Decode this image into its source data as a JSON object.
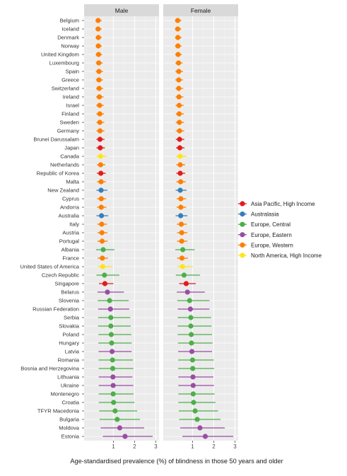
{
  "chart_data": {
    "type": "scatter",
    "subtype": "dot-and-whisker",
    "xlabel": "Age-standardised prevalence (%) of blindness in those 50 years and older",
    "xlim": [
      0,
      3
    ],
    "xticks": [
      1,
      2,
      3
    ],
    "grid": true,
    "legend_position": "right",
    "panels": [
      "Male",
      "Female"
    ],
    "regions": [
      {
        "name": "Asia Pacific, High Income",
        "color": "#e41a1c"
      },
      {
        "name": "Australasia",
        "color": "#377eb8"
      },
      {
        "name": "Europe, Central",
        "color": "#4daf4a"
      },
      {
        "name": "Europe, Eastern",
        "color": "#984ea3"
      },
      {
        "name": "Europe, Western",
        "color": "#ff7f00"
      },
      {
        "name": "North America, High Income",
        "color": "#ffe41a"
      }
    ],
    "countries": [
      {
        "name": "Belgium",
        "region": 4,
        "male": [
          0.28,
          0.15,
          0.45
        ],
        "female": [
          0.3,
          0.17,
          0.48
        ]
      },
      {
        "name": "Iceland",
        "region": 4,
        "male": [
          0.28,
          0.15,
          0.45
        ],
        "female": [
          0.3,
          0.17,
          0.48
        ]
      },
      {
        "name": "Denmark",
        "region": 4,
        "male": [
          0.29,
          0.16,
          0.46
        ],
        "female": [
          0.31,
          0.17,
          0.49
        ]
      },
      {
        "name": "Norway",
        "region": 4,
        "male": [
          0.29,
          0.16,
          0.46
        ],
        "female": [
          0.31,
          0.17,
          0.49
        ]
      },
      {
        "name": "United Kingdom",
        "region": 4,
        "male": [
          0.3,
          0.16,
          0.47
        ],
        "female": [
          0.32,
          0.18,
          0.5
        ]
      },
      {
        "name": "Luxembourg",
        "region": 4,
        "male": [
          0.31,
          0.17,
          0.5
        ],
        "female": [
          0.34,
          0.19,
          0.53
        ]
      },
      {
        "name": "Spain",
        "region": 4,
        "male": [
          0.32,
          0.17,
          0.51
        ],
        "female": [
          0.35,
          0.19,
          0.55
        ]
      },
      {
        "name": "Greece",
        "region": 4,
        "male": [
          0.32,
          0.17,
          0.51
        ],
        "female": [
          0.35,
          0.19,
          0.55
        ]
      },
      {
        "name": "Switzerland",
        "region": 4,
        "male": [
          0.33,
          0.18,
          0.52
        ],
        "female": [
          0.35,
          0.2,
          0.56
        ]
      },
      {
        "name": "Ireland",
        "region": 4,
        "male": [
          0.34,
          0.18,
          0.54
        ],
        "female": [
          0.36,
          0.2,
          0.57
        ]
      },
      {
        "name": "Israel",
        "region": 4,
        "male": [
          0.35,
          0.19,
          0.55
        ],
        "female": [
          0.37,
          0.2,
          0.58
        ]
      },
      {
        "name": "Finland",
        "region": 4,
        "male": [
          0.36,
          0.19,
          0.56
        ],
        "female": [
          0.37,
          0.21,
          0.59
        ]
      },
      {
        "name": "Sweden",
        "region": 4,
        "male": [
          0.36,
          0.2,
          0.57
        ],
        "female": [
          0.38,
          0.21,
          0.6
        ]
      },
      {
        "name": "Germany",
        "region": 4,
        "male": [
          0.37,
          0.2,
          0.58
        ],
        "female": [
          0.39,
          0.21,
          0.61
        ]
      },
      {
        "name": "Brunei Darussalam",
        "region": 0,
        "male": [
          0.37,
          0.2,
          0.58
        ],
        "female": [
          0.39,
          0.21,
          0.61
        ]
      },
      {
        "name": "Japan",
        "region": 0,
        "male": [
          0.38,
          0.2,
          0.6
        ],
        "female": [
          0.4,
          0.22,
          0.62
        ]
      },
      {
        "name": "Canada",
        "region": 5,
        "male": [
          0.4,
          0.2,
          0.7
        ],
        "female": [
          0.42,
          0.22,
          0.72
        ]
      },
      {
        "name": "Netherlands",
        "region": 4,
        "male": [
          0.4,
          0.22,
          0.62
        ],
        "female": [
          0.42,
          0.23,
          0.65
        ]
      },
      {
        "name": "Republic of Korea",
        "region": 0,
        "male": [
          0.41,
          0.22,
          0.64
        ],
        "female": [
          0.42,
          0.23,
          0.65
        ]
      },
      {
        "name": "Malta",
        "region": 4,
        "male": [
          0.42,
          0.23,
          0.65
        ],
        "female": [
          0.44,
          0.24,
          0.68
        ]
      },
      {
        "name": "New Zealand",
        "region": 1,
        "male": [
          0.42,
          0.2,
          0.72
        ],
        "female": [
          0.42,
          0.2,
          0.72
        ]
      },
      {
        "name": "Cyprus",
        "region": 4,
        "male": [
          0.43,
          0.23,
          0.66
        ],
        "female": [
          0.45,
          0.25,
          0.7
        ]
      },
      {
        "name": "Andorra",
        "region": 4,
        "male": [
          0.43,
          0.23,
          0.67
        ],
        "female": [
          0.45,
          0.25,
          0.7
        ]
      },
      {
        "name": "Australia",
        "region": 1,
        "male": [
          0.44,
          0.2,
          0.76
        ],
        "female": [
          0.44,
          0.2,
          0.76
        ]
      },
      {
        "name": "Italy",
        "region": 4,
        "male": [
          0.45,
          0.24,
          0.7
        ],
        "female": [
          0.47,
          0.26,
          0.73
        ]
      },
      {
        "name": "Austria",
        "region": 4,
        "male": [
          0.46,
          0.25,
          0.72
        ],
        "female": [
          0.49,
          0.27,
          0.76
        ]
      },
      {
        "name": "Portugal",
        "region": 4,
        "male": [
          0.47,
          0.25,
          0.73
        ],
        "female": [
          0.49,
          0.27,
          0.76
        ]
      },
      {
        "name": "Albania",
        "region": 2,
        "male": [
          0.52,
          0.18,
          1.05
        ],
        "female": [
          0.54,
          0.19,
          1.1
        ]
      },
      {
        "name": "France",
        "region": 4,
        "male": [
          0.48,
          0.26,
          0.75
        ],
        "female": [
          0.5,
          0.27,
          0.78
        ]
      },
      {
        "name": "United States of America",
        "region": 5,
        "male": [
          0.5,
          0.26,
          0.96
        ],
        "female": [
          0.53,
          0.28,
          1.02
        ]
      },
      {
        "name": "Czech Republic",
        "region": 2,
        "male": [
          0.58,
          0.2,
          1.28
        ],
        "female": [
          0.6,
          0.21,
          1.35
        ]
      },
      {
        "name": "Singapore",
        "region": 0,
        "male": [
          0.6,
          0.32,
          1.0
        ],
        "female": [
          0.7,
          0.37,
          1.15
        ]
      },
      {
        "name": "Belarus",
        "region": 3,
        "male": [
          0.72,
          0.25,
          1.5
        ],
        "female": [
          0.76,
          0.26,
          1.58
        ]
      },
      {
        "name": "Slovenia",
        "region": 2,
        "male": [
          0.82,
          0.26,
          1.72
        ],
        "female": [
          0.86,
          0.28,
          1.8
        ]
      },
      {
        "name": "Russian Federation",
        "region": 3,
        "male": [
          0.86,
          0.28,
          1.75
        ],
        "female": [
          0.9,
          0.3,
          1.8
        ]
      },
      {
        "name": "Serbia",
        "region": 2,
        "male": [
          0.88,
          0.28,
          1.8
        ],
        "female": [
          0.92,
          0.3,
          1.88
        ]
      },
      {
        "name": "Slovakia",
        "region": 2,
        "male": [
          0.88,
          0.28,
          1.82
        ],
        "female": [
          0.92,
          0.3,
          1.9
        ]
      },
      {
        "name": "Poland",
        "region": 2,
        "male": [
          0.9,
          0.29,
          1.85
        ],
        "female": [
          0.94,
          0.3,
          1.92
        ]
      },
      {
        "name": "Hungary",
        "region": 2,
        "male": [
          0.92,
          0.29,
          1.86
        ],
        "female": [
          0.95,
          0.31,
          1.94
        ]
      },
      {
        "name": "Latvia",
        "region": 3,
        "male": [
          0.94,
          0.3,
          1.86
        ],
        "female": [
          0.97,
          0.32,
          1.92
        ]
      },
      {
        "name": "Romania",
        "region": 2,
        "male": [
          0.96,
          0.3,
          1.92
        ],
        "female": [
          1.0,
          0.32,
          2.0
        ]
      },
      {
        "name": "Bosnia and Herzegovina",
        "region": 2,
        "male": [
          0.97,
          0.3,
          1.94
        ],
        "female": [
          1.01,
          0.32,
          2.02
        ]
      },
      {
        "name": "Lithuania",
        "region": 3,
        "male": [
          0.98,
          0.31,
          1.9
        ],
        "female": [
          1.02,
          0.33,
          1.98
        ]
      },
      {
        "name": "Ukraine",
        "region": 3,
        "male": [
          0.99,
          0.31,
          1.94
        ],
        "female": [
          1.03,
          0.33,
          2.01
        ]
      },
      {
        "name": "Montenegro",
        "region": 2,
        "male": [
          0.99,
          0.31,
          1.95
        ],
        "female": [
          1.03,
          0.33,
          2.04
        ]
      },
      {
        "name": "Croatia",
        "region": 2,
        "male": [
          1.01,
          0.31,
          2.0
        ],
        "female": [
          1.05,
          0.33,
          2.08
        ]
      },
      {
        "name": "TFYR Macedonia",
        "region": 2,
        "male": [
          1.08,
          0.33,
          2.12
        ],
        "female": [
          1.12,
          0.35,
          2.2
        ]
      },
      {
        "name": "Bulgaria",
        "region": 2,
        "male": [
          1.18,
          0.35,
          2.25
        ],
        "female": [
          1.22,
          0.37,
          2.32
        ]
      },
      {
        "name": "Moldova",
        "region": 3,
        "male": [
          1.3,
          0.4,
          2.45
        ],
        "female": [
          1.35,
          0.42,
          2.52
        ]
      },
      {
        "name": "Estonia",
        "region": 3,
        "male": [
          1.55,
          0.5,
          2.85
        ],
        "female": [
          1.6,
          0.52,
          2.92
        ]
      }
    ]
  }
}
